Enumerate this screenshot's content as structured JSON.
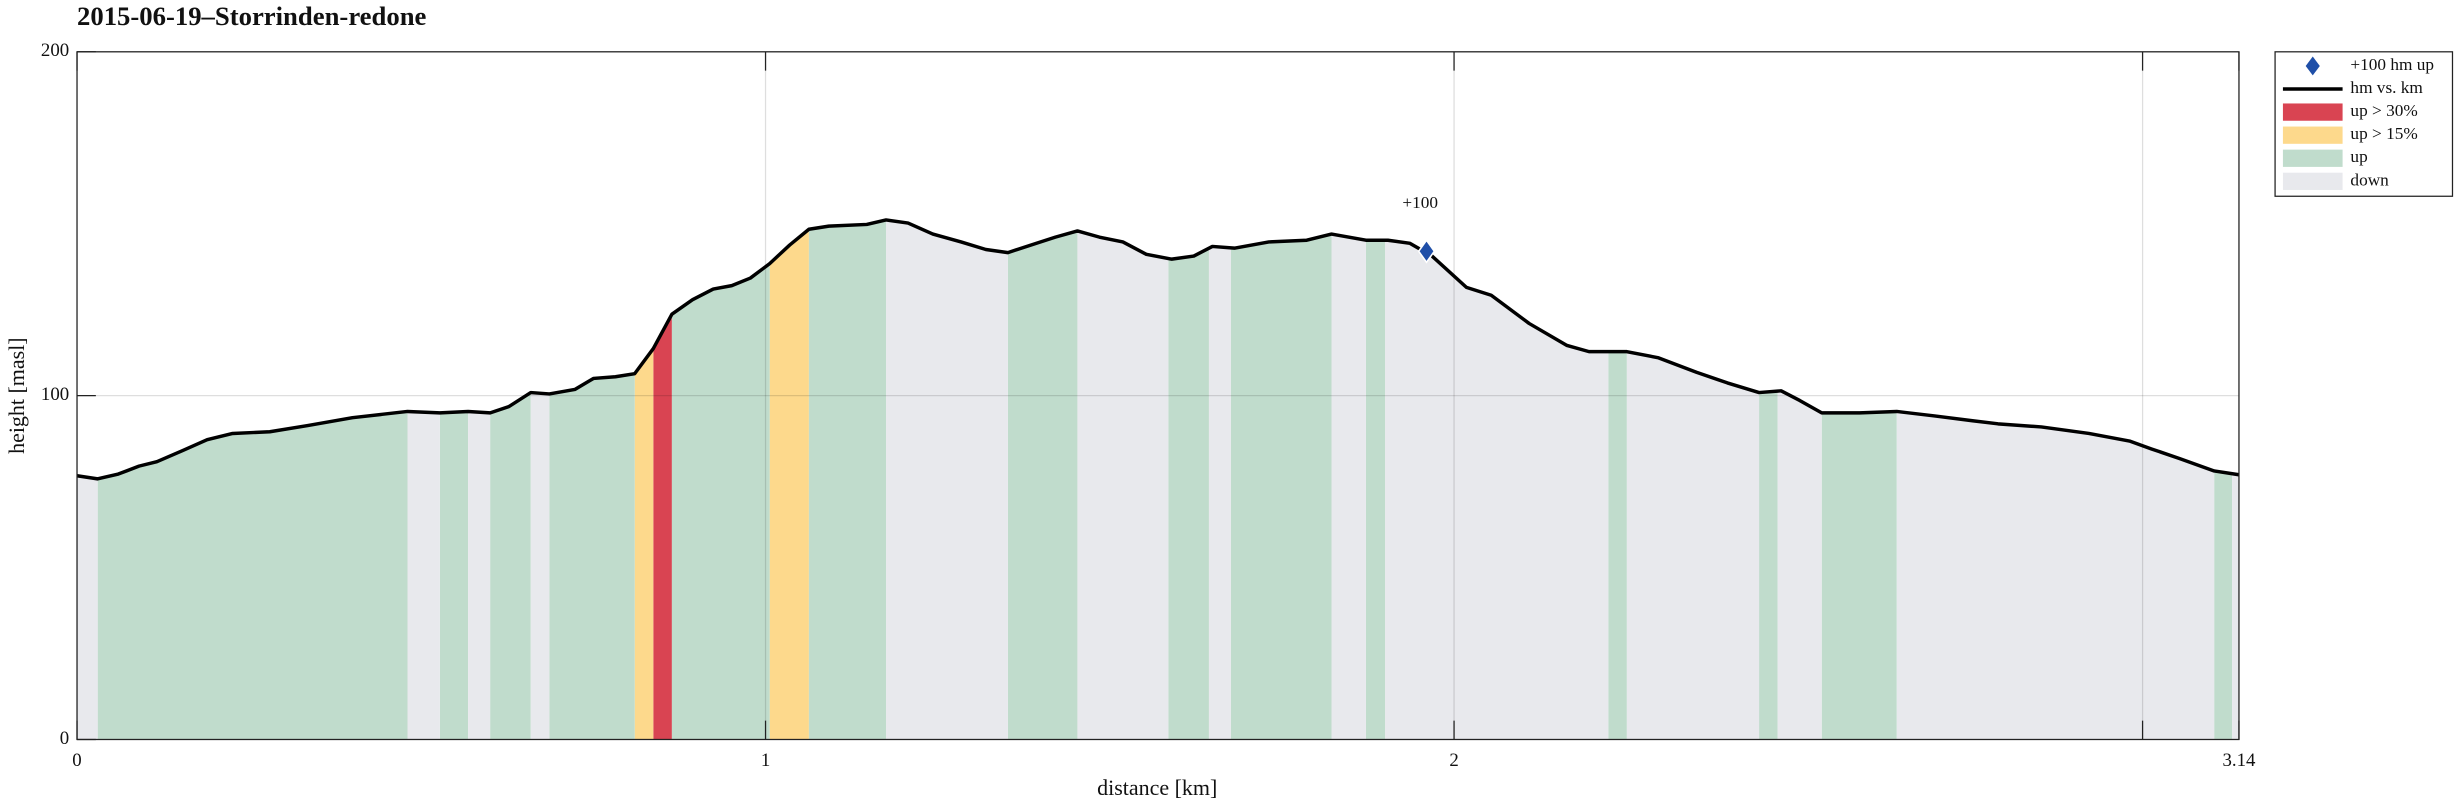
{
  "chart_data": {
    "type": "elevation",
    "title": "2015-06-19–Storrinden-redone",
    "xlabel": "distance [km]",
    "ylabel": "height [masl]",
    "xlim": [
      0,
      3.14
    ],
    "ylim": [
      0,
      200
    ],
    "xticks": [
      0,
      1,
      2,
      {
        "value": 3,
        "label": null
      },
      3.14
    ],
    "yticks": [
      0,
      100,
      200
    ],
    "grid": true,
    "legend": "outside-top-right",
    "profile": {
      "name": "hm vs. km",
      "color": "#000000",
      "x": [
        0,
        0.03,
        0.06,
        0.09,
        0.116,
        0.153,
        0.189,
        0.226,
        0.28,
        0.335,
        0.4,
        0.48,
        0.527,
        0.568,
        0.6,
        0.627,
        0.659,
        0.686,
        0.723,
        0.75,
        0.782,
        0.81,
        0.837,
        0.864,
        0.894,
        0.924,
        0.951,
        0.978,
        1.006,
        1.035,
        1.063,
        1.092,
        1.147,
        1.175,
        1.207,
        1.243,
        1.284,
        1.32,
        1.352,
        1.393,
        1.421,
        1.453,
        1.485,
        1.519,
        1.553,
        1.59,
        1.622,
        1.649,
        1.681,
        1.731,
        1.786,
        1.822,
        1.872,
        1.904,
        1.936,
        1.968,
        2.018,
        2.054,
        2.109,
        2.164,
        2.196,
        2.251,
        2.297,
        2.352,
        2.397,
        2.443,
        2.475,
        2.502,
        2.534,
        2.589,
        2.643,
        2.698,
        2.753,
        2.79,
        2.853,
        2.922,
        2.981,
        3.013,
        3.054,
        3.104,
        3.14
      ],
      "values": [
        76.7,
        75.8,
        77.2,
        79.5,
        80.8,
        84,
        87.2,
        89,
        89.5,
        91.3,
        93.6,
        95.4,
        95,
        95.4,
        95,
        96.8,
        100.9,
        100.5,
        101.8,
        105,
        105.5,
        106.4,
        113.7,
        123.7,
        127.9,
        131,
        132,
        134.2,
        138.4,
        143.8,
        148.4,
        149.3,
        149.8,
        151.1,
        150.2,
        147,
        144.7,
        142.5,
        141.6,
        144.3,
        146.1,
        147.9,
        146.1,
        144.7,
        141.1,
        139.7,
        140.6,
        143.4,
        142.9,
        144.7,
        145.2,
        147,
        145.2,
        145.2,
        144.3,
        140.6,
        131.5,
        129.2,
        121,
        114.6,
        112.8,
        112.8,
        111,
        106.8,
        103.7,
        100.9,
        101.4,
        98.6,
        95,
        95,
        95.4,
        94.1,
        92.7,
        91.8,
        90.9,
        89,
        86.8,
        84.5,
        81.7,
        78.1,
        77
      ]
    },
    "marker": {
      "name": "+100 hm up",
      "label": "+100",
      "color": "#1f4fa8",
      "x": 1.96,
      "y": 142
    },
    "series": [
      {
        "name": "up > 30%",
        "color": "#d94452",
        "spans": [
          [
            0.837,
            0.864
          ]
        ]
      },
      {
        "name": "up > 15%",
        "color": "#fdd98c",
        "spans": [
          [
            0.81,
            0.837
          ],
          [
            1.006,
            1.063
          ]
        ]
      },
      {
        "name": "up",
        "color": "#c0dccc",
        "spans": [
          [
            0.03,
            0.48
          ],
          [
            0.527,
            0.568
          ],
          [
            0.6,
            0.659
          ],
          [
            0.686,
            0.81
          ],
          [
            0.864,
            1.006
          ],
          [
            1.063,
            1.175
          ],
          [
            1.352,
            1.453
          ],
          [
            1.585,
            1.644
          ],
          [
            1.676,
            1.822
          ],
          [
            1.872,
            1.9
          ],
          [
            2.224,
            2.251
          ],
          [
            2.443,
            2.47
          ],
          [
            2.534,
            2.643
          ],
          [
            3.104,
            3.13
          ]
        ]
      },
      {
        "name": "down",
        "color": "#e8e9ed",
        "spans": [
          [
            0,
            0.03
          ],
          [
            0.48,
            0.527
          ],
          [
            0.568,
            0.6
          ],
          [
            0.659,
            0.686
          ],
          [
            1.175,
            1.352
          ],
          [
            1.453,
            1.585
          ],
          [
            1.644,
            1.676
          ],
          [
            1.822,
            1.872
          ],
          [
            1.9,
            2.224
          ],
          [
            2.251,
            2.443
          ],
          [
            2.47,
            2.534
          ],
          [
            2.643,
            3.104
          ],
          [
            3.13,
            3.14
          ]
        ]
      }
    ]
  }
}
